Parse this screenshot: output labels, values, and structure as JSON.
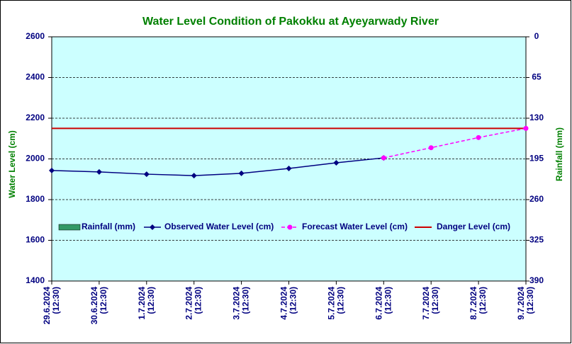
{
  "chart_data": {
    "type": "line",
    "title": "Water Level Condition of Pakokku at Ayeyarwady River",
    "y_label": "Water Level (cm)",
    "y2_label": "Rainfall (mm)",
    "categories": [
      [
        "29.6.2024",
        "(12:30)"
      ],
      [
        "30.6.2024",
        "(12:30)"
      ],
      [
        "1.7.2024",
        "(12:30)"
      ],
      [
        "2.7.2024",
        "(12:30)"
      ],
      [
        "3.7.2024",
        "(12:30)"
      ],
      [
        "4.7.2024",
        "(12:30)"
      ],
      [
        "5.7.2024",
        "(12:30)"
      ],
      [
        "6.7.2024",
        "(12:30)"
      ],
      [
        "7.7.2024",
        "(12:30)"
      ],
      [
        "8.7.2024",
        "(12:30)"
      ],
      [
        "9.7.2024",
        "(12:30)"
      ]
    ],
    "ylim": [
      1400,
      2600
    ],
    "yticks": [
      1400,
      1600,
      1800,
      2000,
      2200,
      2400,
      2600
    ],
    "y2lim": [
      0,
      390
    ],
    "y2ticks": [
      0,
      65,
      130,
      195,
      260,
      325,
      390
    ],
    "y2_inverted": true,
    "grid": true,
    "series": [
      {
        "name": "Rainfall (mm)",
        "color": "#339966",
        "axis": "y2",
        "kind": "bar",
        "values": [
          null,
          null,
          null,
          null,
          null,
          null,
          null,
          null,
          null,
          null,
          null
        ]
      },
      {
        "name": "Observed Water Level (cm)",
        "color": "#000080",
        "kind": "line",
        "values": [
          1943,
          1936,
          1925,
          1918,
          1929,
          1953,
          1981,
          2005,
          null,
          null,
          null
        ]
      },
      {
        "name": "Forecast Water Level (cm)",
        "color": "#ff00ff",
        "kind": "dashed",
        "values": [
          null,
          null,
          null,
          null,
          null,
          null,
          null,
          2005,
          2055,
          2105,
          2150
        ]
      }
    ],
    "danger_level": {
      "name": "Danger Level (cm)",
      "color": "#cc0000",
      "value": 2150
    }
  }
}
